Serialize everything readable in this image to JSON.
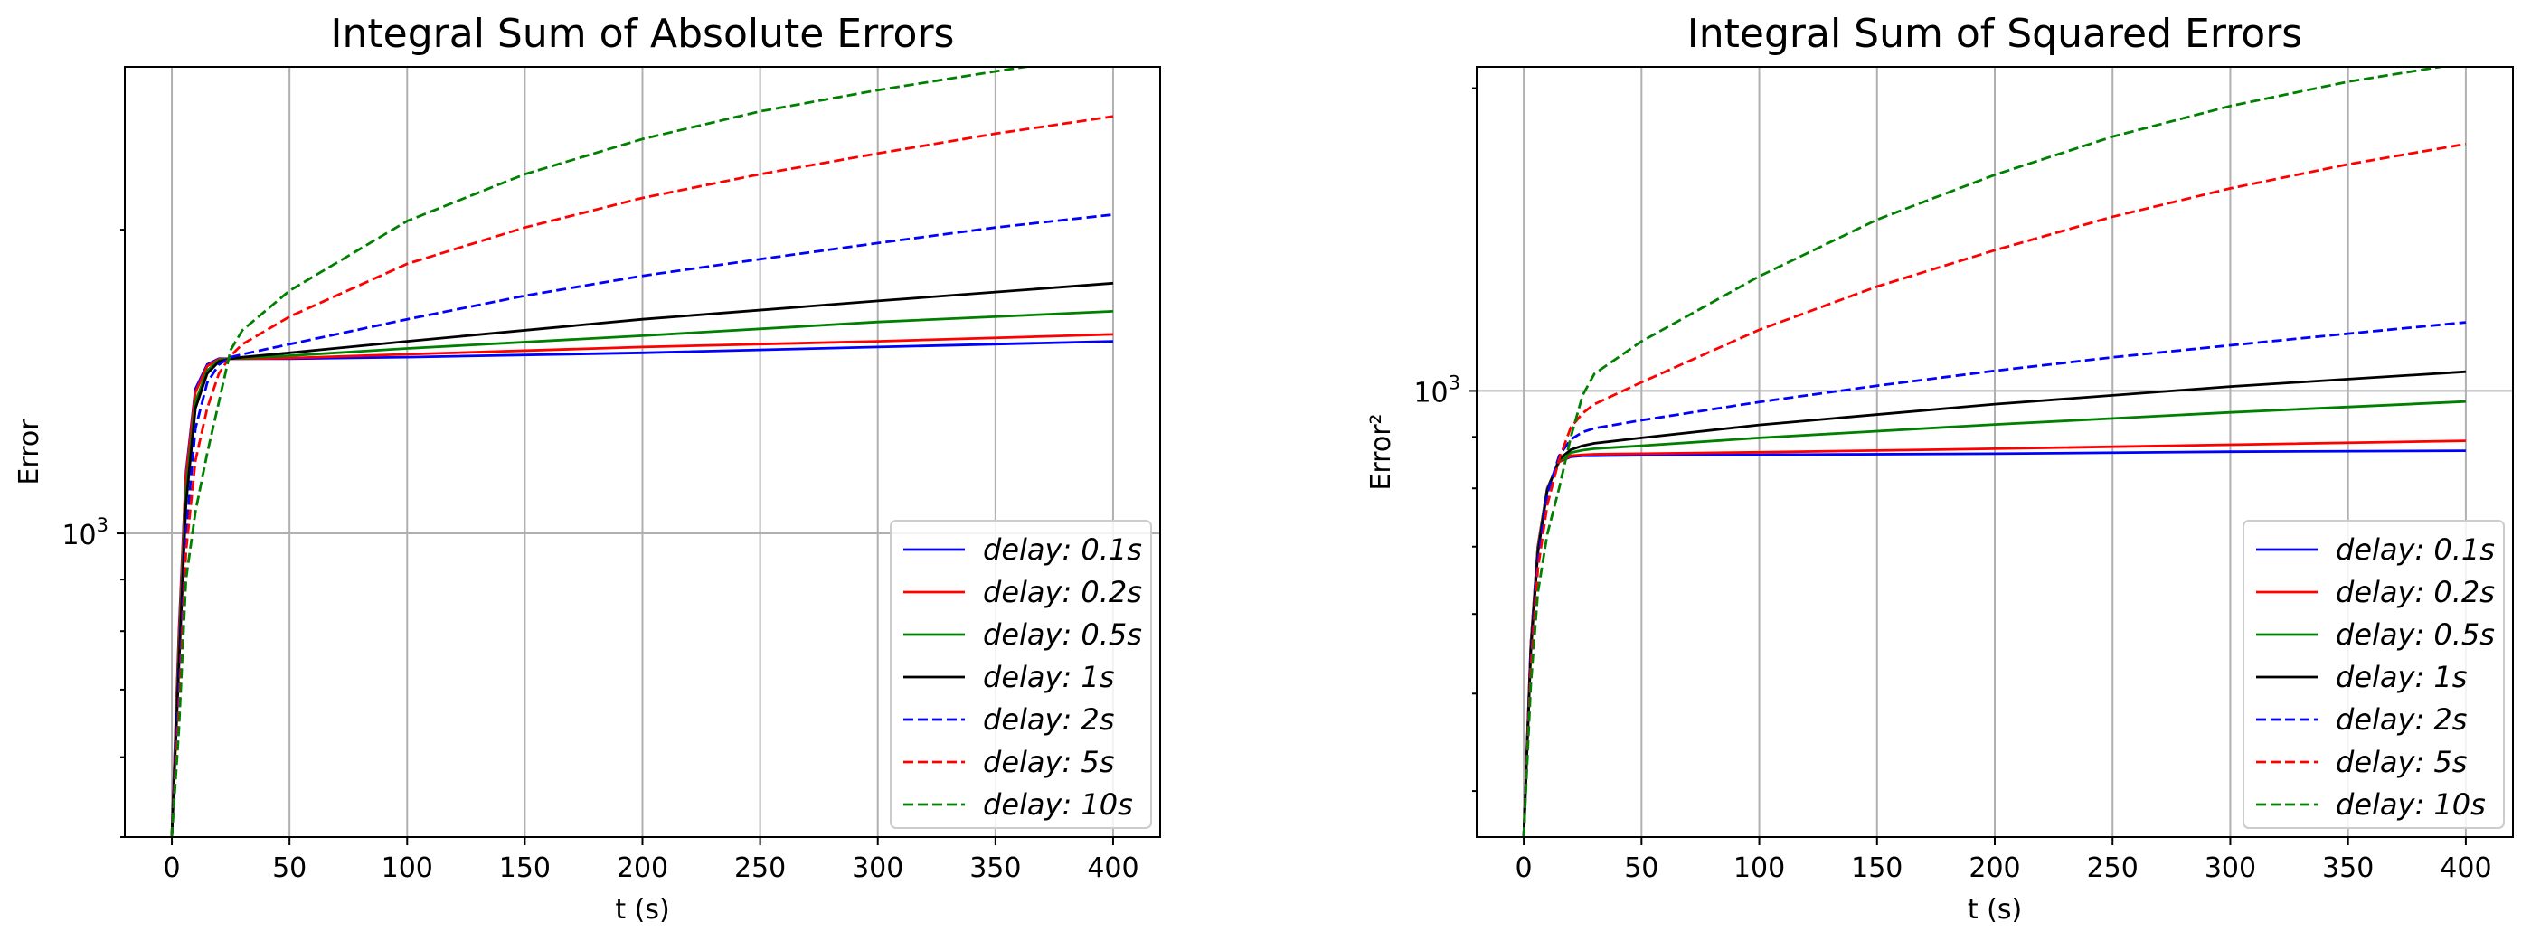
{
  "chart_data": [
    {
      "type": "line",
      "title": "Integral Sum of Absolute Errors",
      "xlabel": "t (s)",
      "ylabel": "Error",
      "xlim": [
        -20,
        420
      ],
      "ylim": [
        500,
        2900
      ],
      "yscale": "log",
      "x_ticks": [
        0,
        50,
        100,
        150,
        200,
        250,
        300,
        350,
        400
      ],
      "y_ticks": [
        {
          "value": 1000,
          "base": "10",
          "exp": "3"
        }
      ],
      "grid": true,
      "legend_position": "lower-right",
      "series": [
        {
          "name": "delay: 0.1s",
          "color": "#0000ff",
          "dash": "solid",
          "x": [
            0,
            3,
            6,
            10,
            15,
            20,
            25,
            30,
            50,
            100,
            200,
            300,
            400
          ],
          "y": [
            500,
            800,
            1150,
            1390,
            1470,
            1490,
            1490,
            1490,
            1490,
            1495,
            1510,
            1530,
            1550
          ]
        },
        {
          "name": "delay: 0.2s",
          "color": "#ff0000",
          "dash": "solid",
          "x": [
            0,
            3,
            6,
            10,
            15,
            20,
            25,
            30,
            50,
            100,
            200,
            300,
            400
          ],
          "y": [
            500,
            790,
            1140,
            1380,
            1465,
            1488,
            1490,
            1490,
            1492,
            1505,
            1530,
            1550,
            1575
          ]
        },
        {
          "name": "delay: 0.5s",
          "color": "#008000",
          "dash": "solid",
          "x": [
            0,
            3,
            6,
            10,
            15,
            20,
            25,
            30,
            50,
            100,
            200,
            300,
            400
          ],
          "y": [
            500,
            760,
            1100,
            1350,
            1450,
            1485,
            1490,
            1492,
            1500,
            1525,
            1570,
            1620,
            1660
          ]
        },
        {
          "name": "delay: 1s",
          "color": "#000000",
          "dash": "solid",
          "x": [
            0,
            3,
            6,
            10,
            15,
            20,
            25,
            30,
            50,
            100,
            200,
            300,
            400
          ],
          "y": [
            500,
            740,
            1070,
            1330,
            1440,
            1480,
            1490,
            1495,
            1510,
            1550,
            1630,
            1700,
            1770
          ]
        },
        {
          "name": "delay: 2s",
          "color": "#0000ff",
          "dash": "dashed",
          "x": [
            0,
            3,
            6,
            10,
            15,
            20,
            25,
            30,
            50,
            100,
            150,
            200,
            250,
            300,
            350,
            400
          ],
          "y": [
            500,
            700,
            1000,
            1270,
            1410,
            1470,
            1495,
            1505,
            1540,
            1630,
            1720,
            1800,
            1870,
            1940,
            2010,
            2070
          ]
        },
        {
          "name": "delay: 5s",
          "color": "#ff0000",
          "dash": "dashed",
          "x": [
            0,
            3,
            6,
            10,
            15,
            20,
            25,
            30,
            50,
            100,
            150,
            200,
            250,
            300,
            350,
            400
          ],
          "y": [
            500,
            670,
            960,
            1180,
            1330,
            1440,
            1500,
            1540,
            1640,
            1850,
            2010,
            2150,
            2270,
            2380,
            2490,
            2590
          ]
        },
        {
          "name": "delay: 10s",
          "color": "#008000",
          "dash": "dashed",
          "x": [
            0,
            3,
            6,
            10,
            15,
            20,
            25,
            30,
            50,
            100,
            150,
            200,
            250,
            300,
            350,
            400
          ],
          "y": [
            500,
            640,
            900,
            1050,
            1200,
            1350,
            1520,
            1590,
            1740,
            2040,
            2270,
            2460,
            2620,
            2750,
            2870,
            2990
          ]
        }
      ]
    },
    {
      "type": "line",
      "title": "Integral Sum of Squared Errors",
      "xlabel": "t (s)",
      "ylabel": "Error²",
      "xlim": [
        -20,
        420
      ],
      "ylim": [
        360,
        2100
      ],
      "yscale": "log",
      "x_ticks": [
        0,
        50,
        100,
        150,
        200,
        250,
        300,
        350,
        400
      ],
      "y_ticks": [
        {
          "value": 1000,
          "base": "10",
          "exp": "3"
        }
      ],
      "grid": true,
      "legend_position": "lower-right",
      "series": [
        {
          "name": "delay: 0.1s",
          "color": "#0000ff",
          "dash": "solid",
          "x": [
            0,
            3,
            6,
            10,
            15,
            20,
            25,
            30,
            50,
            100,
            200,
            300,
            400
          ],
          "y": [
            360,
            560,
            700,
            800,
            850,
            860,
            862,
            862,
            863,
            864,
            866,
            870,
            872
          ]
        },
        {
          "name": "delay: 0.2s",
          "color": "#ff0000",
          "dash": "solid",
          "x": [
            0,
            3,
            6,
            10,
            15,
            20,
            25,
            30,
            50,
            100,
            200,
            300,
            400
          ],
          "y": [
            360,
            560,
            700,
            800,
            850,
            862,
            864,
            865,
            866,
            869,
            876,
            884,
            892
          ]
        },
        {
          "name": "delay: 0.5s",
          "color": "#008000",
          "dash": "solid",
          "x": [
            0,
            3,
            6,
            10,
            15,
            20,
            25,
            30,
            50,
            100,
            200,
            300,
            400
          ],
          "y": [
            360,
            555,
            695,
            798,
            852,
            868,
            873,
            876,
            882,
            898,
            926,
            952,
            976
          ]
        },
        {
          "name": "delay: 1s",
          "color": "#000000",
          "dash": "solid",
          "x": [
            0,
            3,
            6,
            10,
            15,
            20,
            25,
            30,
            50,
            100,
            200,
            300,
            400
          ],
          "y": [
            360,
            550,
            690,
            796,
            855,
            874,
            882,
            887,
            898,
            925,
            970,
            1010,
            1045
          ]
        },
        {
          "name": "delay: 2s",
          "color": "#0000ff",
          "dash": "dashed",
          "x": [
            0,
            3,
            6,
            10,
            15,
            20,
            25,
            30,
            50,
            100,
            150,
            200,
            250,
            300,
            350,
            400
          ],
          "y": [
            360,
            540,
            680,
            790,
            862,
            895,
            910,
            918,
            935,
            975,
            1012,
            1047,
            1080,
            1110,
            1140,
            1170
          ]
        },
        {
          "name": "delay: 5s",
          "color": "#ff0000",
          "dash": "dashed",
          "x": [
            0,
            3,
            6,
            10,
            15,
            20,
            25,
            30,
            50,
            100,
            150,
            200,
            250,
            300,
            350,
            400
          ],
          "y": [
            360,
            530,
            665,
            770,
            855,
            920,
            950,
            970,
            1020,
            1150,
            1270,
            1380,
            1490,
            1590,
            1680,
            1760
          ]
        },
        {
          "name": "delay: 10s",
          "color": "#008000",
          "dash": "dashed",
          "x": [
            0,
            3,
            6,
            10,
            15,
            20,
            25,
            30,
            50,
            100,
            150,
            200,
            250,
            300,
            350,
            400
          ],
          "y": [
            360,
            510,
            630,
            720,
            800,
            900,
            990,
            1040,
            1120,
            1300,
            1480,
            1640,
            1790,
            1920,
            2030,
            2120
          ]
        }
      ]
    }
  ]
}
